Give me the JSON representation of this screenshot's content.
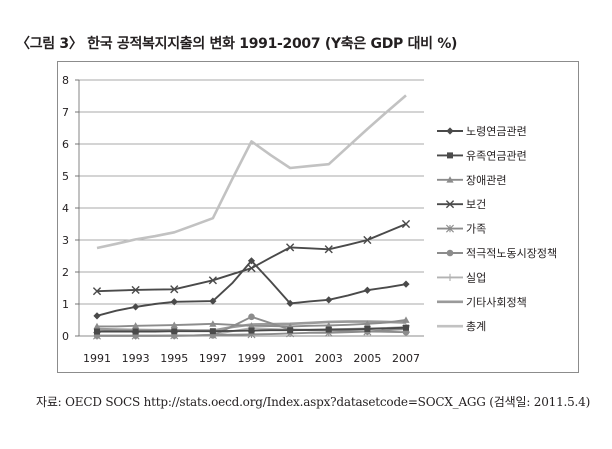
{
  "figure": {
    "caption": "〈그림 3〉 한국 공적복지지출의 변화 1991-2007 (Y축은 GDP 대비 %)",
    "source": "자료: OECD SOCS http://stats.oecd.org/Index.aspx?datasetcode=SOCX_AGG (검색일: 2011.5.4)"
  },
  "chart_data": {
    "type": "line",
    "title": "한국 공적복지지출의 변화 1991-2007",
    "xlabel": "",
    "ylabel": "GDP 대비 %",
    "ylim": [
      0,
      8
    ],
    "yticks": [
      0,
      1,
      2,
      3,
      4,
      5,
      6,
      7,
      8
    ],
    "x": [
      "1991",
      "1992",
      "1993",
      "1994",
      "1995",
      "1996",
      "1997",
      "1998",
      "1999",
      "2000",
      "2001",
      "2002",
      "2003",
      "2004",
      "2005",
      "2006",
      "2007"
    ],
    "xticks": [
      "1991",
      "1993",
      "1995",
      "1997",
      "1999",
      "2001",
      "2003",
      "2005",
      "2007"
    ],
    "grid": true,
    "legend_position": "right",
    "series": [
      {
        "name": "노령연금관련",
        "color": "#4a4a4a",
        "marker": "diamond",
        "values": [
          0.63,
          0.79,
          0.91,
          1.0,
          1.07,
          1.08,
          1.09,
          1.65,
          2.35,
          1.7,
          1.02,
          1.08,
          1.13,
          1.27,
          1.43,
          1.52,
          1.62
        ]
      },
      {
        "name": "유족연금관련",
        "color": "#4a4a4a",
        "marker": "square",
        "values": [
          0.14,
          0.14,
          0.14,
          0.14,
          0.15,
          0.15,
          0.15,
          0.16,
          0.17,
          0.18,
          0.18,
          0.19,
          0.2,
          0.21,
          0.22,
          0.24,
          0.26
        ]
      },
      {
        "name": "장애관련",
        "color": "#8c8c8c",
        "marker": "triangle",
        "values": [
          0.3,
          0.3,
          0.32,
          0.33,
          0.34,
          0.36,
          0.38,
          0.35,
          0.32,
          0.31,
          0.3,
          0.32,
          0.33,
          0.35,
          0.38,
          0.42,
          0.5
        ]
      },
      {
        "name": "보건",
        "color": "#4a4a4a",
        "marker": "x",
        "values": [
          1.4,
          1.42,
          1.44,
          1.45,
          1.46,
          1.6,
          1.74,
          1.93,
          2.12,
          2.45,
          2.77,
          2.74,
          2.71,
          2.85,
          3.0,
          3.25,
          3.5
        ]
      },
      {
        "name": "가족",
        "color": "#8c8c8c",
        "marker": "asterisk",
        "values": [
          0.01,
          0.01,
          0.01,
          0.01,
          0.02,
          0.02,
          0.03,
          0.04,
          0.05,
          0.06,
          0.08,
          0.1,
          0.1,
          0.12,
          0.14,
          0.18,
          0.22
        ]
      },
      {
        "name": "적극적노동시장정책",
        "color": "#8c8c8c",
        "marker": "circle",
        "values": [
          0.01,
          0.01,
          0.01,
          0.01,
          0.01,
          0.01,
          0.02,
          0.3,
          0.6,
          0.4,
          0.2,
          0.18,
          0.17,
          0.16,
          0.14,
          0.13,
          0.12
        ]
      },
      {
        "name": "실업",
        "color": "#b3b3b3",
        "marker": "plus",
        "values": [
          0.0,
          0.0,
          0.0,
          0.0,
          0.0,
          0.02,
          0.04,
          0.15,
          0.25,
          0.22,
          0.2,
          0.2,
          0.21,
          0.22,
          0.24,
          0.25,
          0.28
        ]
      },
      {
        "name": "기타사회정책",
        "color": "#9a9a9a",
        "marker": "none",
        "values": [
          0.22,
          0.2,
          0.19,
          0.18,
          0.18,
          0.17,
          0.17,
          0.28,
          0.36,
          0.37,
          0.38,
          0.41,
          0.44,
          0.45,
          0.45,
          0.44,
          0.42
        ]
      },
      {
        "name": "총계",
        "color": "#c2c2c2",
        "marker": "none",
        "values": [
          2.75,
          2.88,
          3.02,
          3.12,
          3.24,
          3.46,
          3.68,
          4.9,
          6.08,
          5.65,
          5.25,
          5.31,
          5.37,
          5.92,
          6.47,
          7.0,
          7.52
        ]
      }
    ]
  }
}
